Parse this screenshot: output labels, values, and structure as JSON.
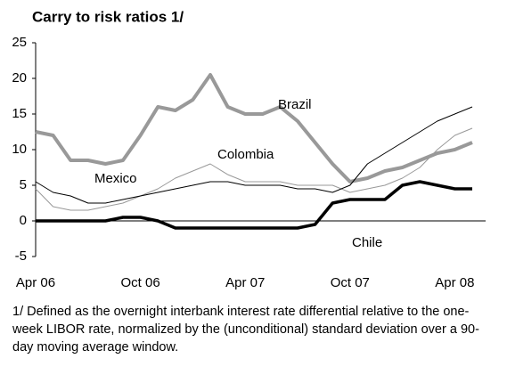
{
  "chart_data": {
    "type": "line",
    "title": "Carry to risk ratios 1/",
    "footnote": "1/ Defined as the overnight interbank interest rate differential relative to the one-week LIBOR rate, normalized by the (unconditional) standard deviation over a 90-day moving average window.",
    "categories": [
      "Apr 06",
      null,
      null,
      null,
      null,
      null,
      "Oct 06",
      null,
      null,
      null,
      null,
      null,
      "Apr 07",
      null,
      null,
      null,
      null,
      null,
      "Oct 07",
      null,
      null,
      null,
      null,
      null,
      "Apr 08",
      null
    ],
    "ylim": [
      -5,
      25
    ],
    "yticks": [
      -5,
      0,
      5,
      10,
      15,
      20,
      25
    ],
    "series": [
      {
        "name": "Brazil",
        "color": "#999999",
        "line_width": 4,
        "values": [
          12.5,
          12,
          8.5,
          8.5,
          8,
          8.5,
          12,
          16,
          15.5,
          17,
          20.5,
          16,
          15,
          15,
          16,
          14,
          11,
          8,
          5.5,
          6,
          7,
          7.5,
          8.5,
          9.5,
          10,
          11
        ]
      },
      {
        "name": "Colombia",
        "color": "#999999",
        "line_width": 1,
        "values": [
          4.5,
          2,
          1.5,
          1.5,
          2,
          2.5,
          3.5,
          4.5,
          6,
          7,
          8,
          6.5,
          5.5,
          5.5,
          5.5,
          5,
          5,
          5,
          4,
          4.5,
          5,
          6,
          7.5,
          10,
          12,
          13
        ]
      },
      {
        "name": "Mexico",
        "color": "#000000",
        "line_width": 1,
        "values": [
          5.5,
          4,
          3.5,
          2.5,
          2.5,
          3,
          3.5,
          4,
          4.5,
          5,
          5.5,
          5.5,
          5,
          5,
          5,
          4.5,
          4.5,
          4,
          5,
          8,
          9.5,
          11,
          12.5,
          14,
          15,
          16
        ]
      },
      {
        "name": "Chile",
        "color": "#000000",
        "line_width": 3.5,
        "values": [
          0,
          0,
          0,
          0,
          0,
          0.5,
          0.5,
          0,
          -1,
          -1,
          -1,
          -1,
          -1,
          -1,
          -1,
          -1,
          -0.5,
          2.5,
          3,
          3,
          3,
          5,
          5.5,
          5,
          4.5,
          4.5
        ]
      }
    ]
  }
}
